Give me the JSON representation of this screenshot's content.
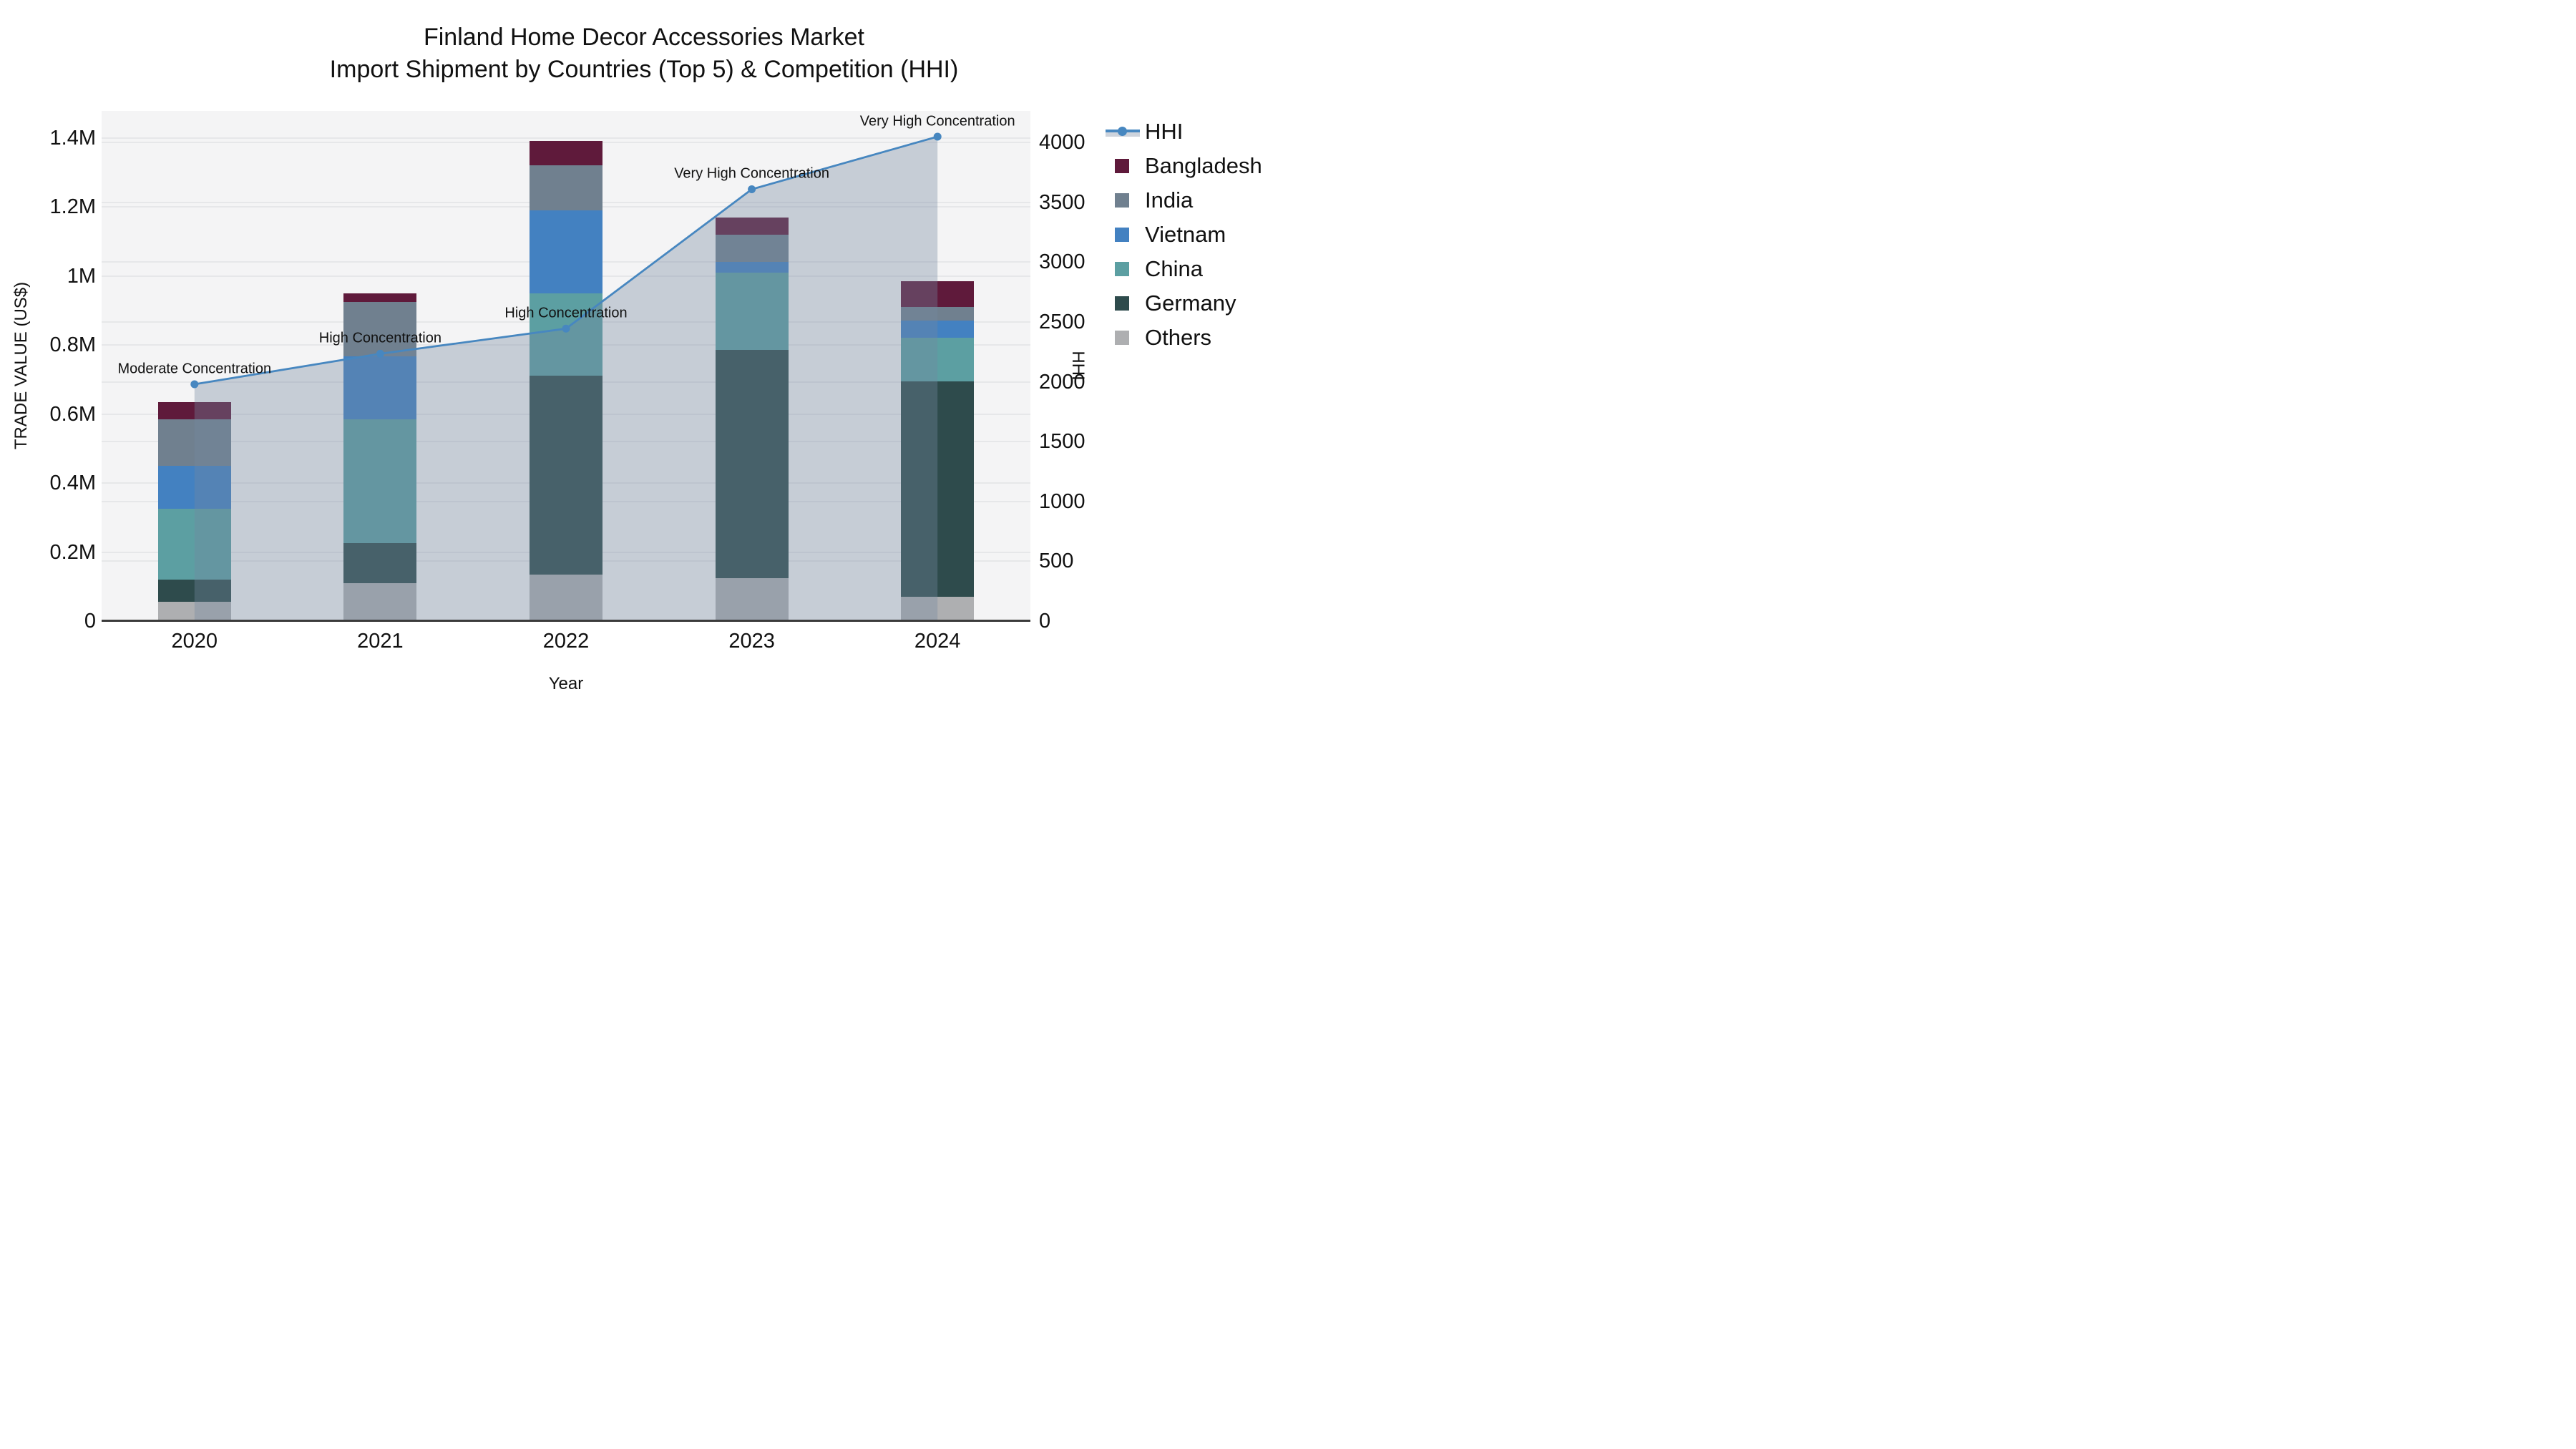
{
  "title": {
    "line1": "Finland Home Decor Accessories Market",
    "line2": "Import Shipment by Countries (Top 5) & Competition (HHI)"
  },
  "chart_data": {
    "type": "bar",
    "subtype": "stacked bars with overlaid line+area on secondary axis",
    "categories": [
      "2020",
      "2021",
      "2022",
      "2023",
      "2024"
    ],
    "series": [
      {
        "name": "Others",
        "color": "#AEAFB1",
        "values": [
          55000,
          110000,
          135000,
          125000,
          70000
        ]
      },
      {
        "name": "Germany",
        "color": "#2E4B4C",
        "values": [
          65000,
          115000,
          575000,
          660000,
          625000
        ]
      },
      {
        "name": "China",
        "color": "#5C9FA2",
        "values": [
          205000,
          360000,
          240000,
          225000,
          125000
        ]
      },
      {
        "name": "Vietnam",
        "color": "#4381C1",
        "values": [
          125000,
          182000,
          240000,
          30000,
          50000
        ]
      },
      {
        "name": "India",
        "color": "#70808F",
        "values": [
          135000,
          157000,
          130000,
          80000,
          40000
        ]
      },
      {
        "name": "Bangladesh",
        "color": "#5F1A3B",
        "values": [
          50000,
          25000,
          70000,
          50000,
          75000
        ]
      }
    ],
    "bar_totals": [
      635000,
      949000,
      1390000,
      1170000,
      985000
    ],
    "line_series": {
      "name": "HHI",
      "color": "#4787C0",
      "area_fill_color": "#7587A1",
      "area_fill_opacity": 0.36,
      "values": [
        1980,
        2235,
        2445,
        3610,
        4050
      ]
    },
    "annotations": [
      {
        "category": "2020",
        "text": "Moderate Concentration"
      },
      {
        "category": "2021",
        "text": "High Concentration"
      },
      {
        "category": "2022",
        "text": "High Concentration"
      },
      {
        "category": "2023",
        "text": "Very High Concentration"
      },
      {
        "category": "2024",
        "text": "Very High Concentration"
      }
    ],
    "xlabel": "Year",
    "ylabel_left": "TRADE VALUE (US$)",
    "ylabel_right": "HHI",
    "axes": {
      "left_ticks": {
        "labels": [
          "0",
          "0.2M",
          "0.4M",
          "0.6M",
          "0.8M",
          "1M",
          "1.2M",
          "1.4M"
        ],
        "values": [
          0,
          200000,
          400000,
          600000,
          800000,
          1000000,
          1200000,
          1400000
        ],
        "max": 1478000
      },
      "right_ticks": {
        "labels": [
          "0",
          "500",
          "1000",
          "1500",
          "2000",
          "2500",
          "3000",
          "3500",
          "4000"
        ],
        "values": [
          0,
          500,
          1000,
          1500,
          2000,
          2500,
          3000,
          3500,
          4000
        ],
        "max": 4265
      }
    },
    "grid": true,
    "legend_position": "right",
    "legend_order": [
      "HHI",
      "Bangladesh",
      "India",
      "Vietnam",
      "China",
      "Germany",
      "Others"
    ],
    "plot_background": "#F4F4F5"
  }
}
